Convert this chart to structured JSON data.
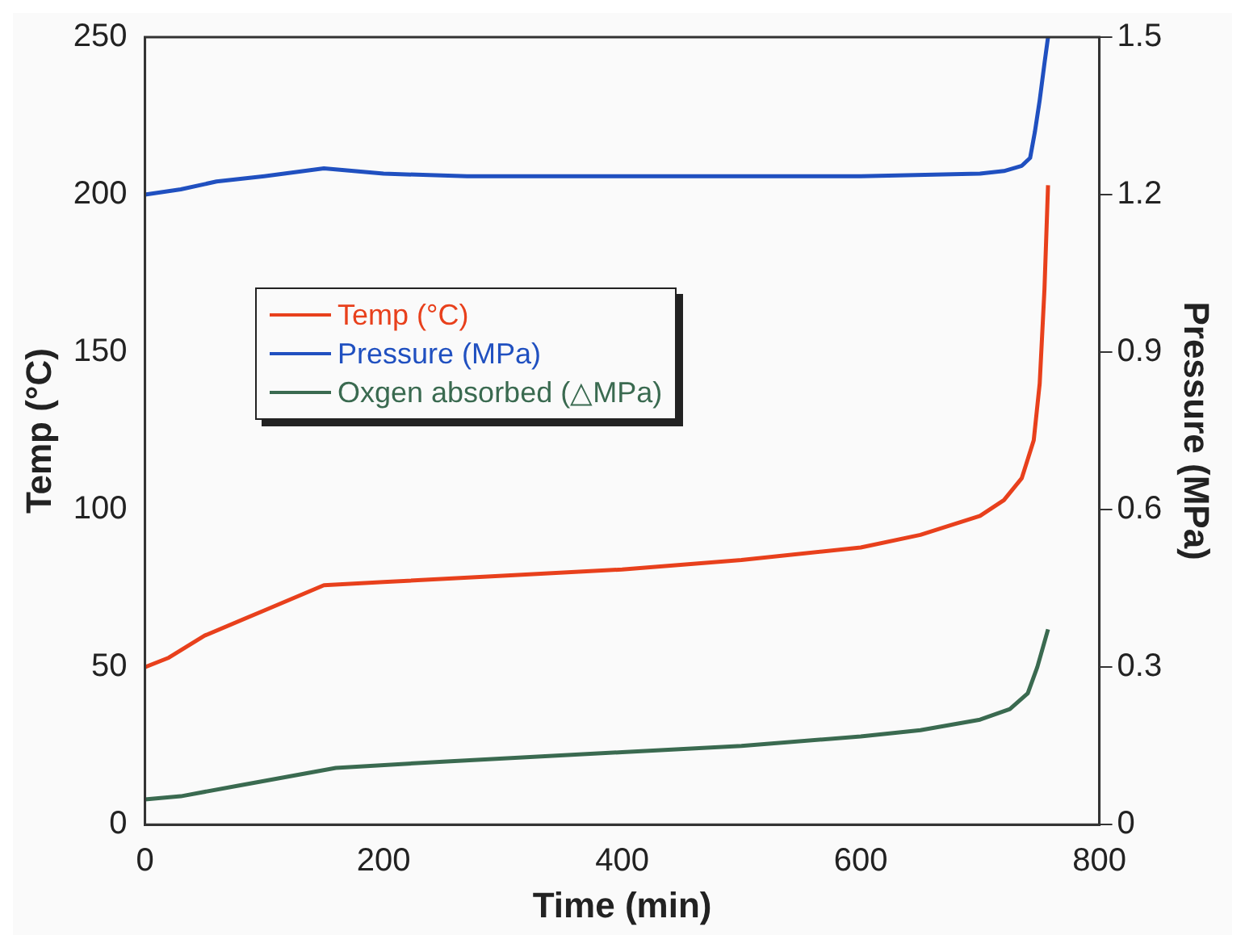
{
  "chart_data": {
    "type": "line",
    "xlabel": "Time (min)",
    "ylabel": "Temp (°C)",
    "y2label": "Pressure (MPa)",
    "xlim": [
      0,
      800
    ],
    "xticks": [
      0,
      200,
      400,
      600,
      800
    ],
    "ylim": [
      0,
      250
    ],
    "yticks": [
      0,
      50,
      100,
      150,
      200,
      250
    ],
    "y2lim": [
      0,
      1.5
    ],
    "y2ticks": [
      0,
      0.3,
      0.6,
      0.9,
      1.2,
      1.5
    ],
    "legend": "left",
    "grid": false,
    "marker": "none",
    "line_style": "solid",
    "series": [
      {
        "name": "Temp (°C)",
        "color": "#e8401c",
        "x": [
          0,
          20,
          50,
          100,
          150,
          200,
          300,
          400,
          500,
          600,
          650,
          700,
          720,
          735,
          745,
          750,
          754,
          757
        ],
        "values": [
          50,
          53,
          60,
          68,
          76,
          77,
          79,
          81,
          84,
          88,
          92,
          98,
          103,
          110,
          122,
          140,
          170,
          203
        ]
      },
      {
        "name": "Pressure (MPa)",
        "color": "#2050c0",
        "axis": "y2",
        "x": [
          0,
          30,
          60,
          100,
          150,
          200,
          270,
          400,
          600,
          700,
          720,
          735,
          742,
          746,
          750,
          754,
          757
        ],
        "values": [
          1.2,
          1.21,
          1.225,
          1.235,
          1.25,
          1.24,
          1.235,
          1.235,
          1.235,
          1.24,
          1.245,
          1.255,
          1.27,
          1.32,
          1.38,
          1.45,
          1.5
        ]
      },
      {
        "name": "Oxgen absorbed (△MPa)",
        "color": "#3a6a50",
        "axis": "y2",
        "x": [
          0,
          30,
          80,
          160,
          250,
          400,
          500,
          600,
          650,
          700,
          725,
          740,
          748,
          757
        ],
        "values": [
          0.048,
          0.054,
          0.075,
          0.108,
          0.12,
          0.138,
          0.15,
          0.168,
          0.18,
          0.2,
          0.22,
          0.25,
          0.3,
          0.372
        ]
      }
    ]
  }
}
